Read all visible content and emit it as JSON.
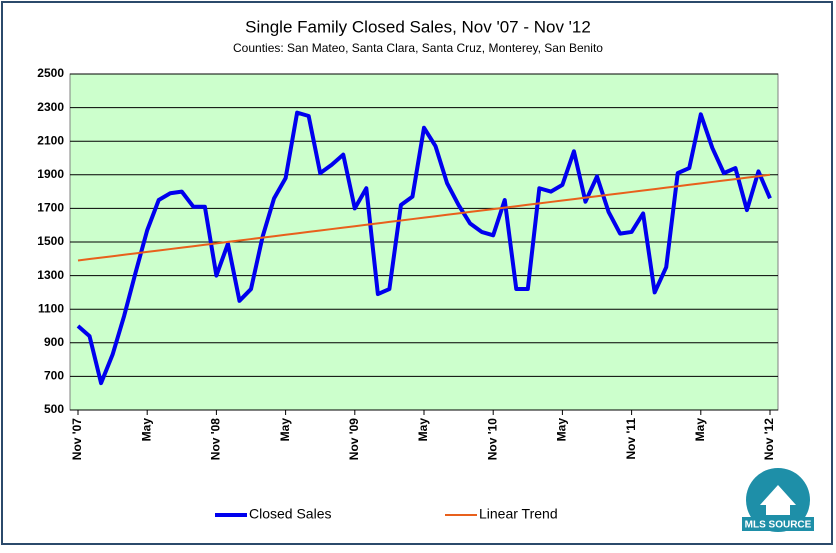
{
  "chart_data": {
    "type": "line",
    "title": "Single Family Closed Sales, Nov '07 - Nov '12",
    "subtitle": "Counties: San Mateo, Santa Clara, Santa Cruz, Monterey, San Benito",
    "categories": [
      "Nov '07",
      null,
      null,
      null,
      null,
      null,
      "May",
      null,
      null,
      null,
      null,
      null,
      "Nov '08",
      null,
      null,
      null,
      null,
      null,
      "May",
      null,
      null,
      null,
      null,
      null,
      "Nov '09",
      null,
      null,
      null,
      null,
      null,
      "May",
      null,
      null,
      null,
      null,
      null,
      "Nov '10",
      null,
      null,
      null,
      null,
      null,
      "May",
      null,
      null,
      null,
      null,
      null,
      "Nov '11",
      null,
      null,
      null,
      null,
      null,
      "May",
      null,
      null,
      null,
      null,
      null,
      "Nov '12"
    ],
    "series": [
      {
        "name": "Closed Sales",
        "color": "#0000ee",
        "values": [
          1000,
          940,
          660,
          830,
          1060,
          1320,
          1570,
          1750,
          1790,
          1800,
          1710,
          1710,
          1300,
          1490,
          1150,
          1220,
          1530,
          1760,
          1880,
          2270,
          2250,
          1910,
          1960,
          2020,
          1700,
          1820,
          1190,
          1220,
          1720,
          1770,
          2180,
          2070,
          1850,
          1720,
          1610,
          1560,
          1540,
          1750,
          1220,
          1220,
          1820,
          1800,
          1840,
          2040,
          1740,
          1890,
          1680,
          1550,
          1560,
          1670,
          1200,
          1350,
          1910,
          1940,
          2260,
          2060,
          1910,
          1940,
          1690,
          1920,
          1760
        ]
      },
      {
        "name": "Linear Trend",
        "color": "#e8601c",
        "values": [
          1390,
          1398.5,
          1407,
          1415.5,
          1424,
          1432.5,
          1441,
          1449.5,
          1458,
          1466.5,
          1475,
          1483.5,
          1492,
          1500.5,
          1509,
          1517.5,
          1526,
          1534.5,
          1543,
          1551.5,
          1560,
          1568.5,
          1577,
          1585.5,
          1594,
          1602.5,
          1611,
          1619.5,
          1628,
          1636.5,
          1645,
          1653.5,
          1662,
          1670.5,
          1679,
          1687.5,
          1696,
          1704.5,
          1713,
          1721.5,
          1730,
          1738.5,
          1747,
          1755.5,
          1764,
          1772.5,
          1781,
          1789.5,
          1798,
          1806.5,
          1815,
          1823.5,
          1832,
          1840.5,
          1849,
          1857.5,
          1866,
          1874.5,
          1883,
          1891.5,
          1900
        ]
      }
    ],
    "ylim": [
      500,
      2500
    ],
    "yticks": [
      500,
      700,
      900,
      1100,
      1300,
      1500,
      1700,
      1900,
      2100,
      2300,
      2500
    ],
    "grid": true,
    "legend": "bottom",
    "plot_background": "#ccffcc"
  },
  "logo_text": "MLS SOURCE"
}
